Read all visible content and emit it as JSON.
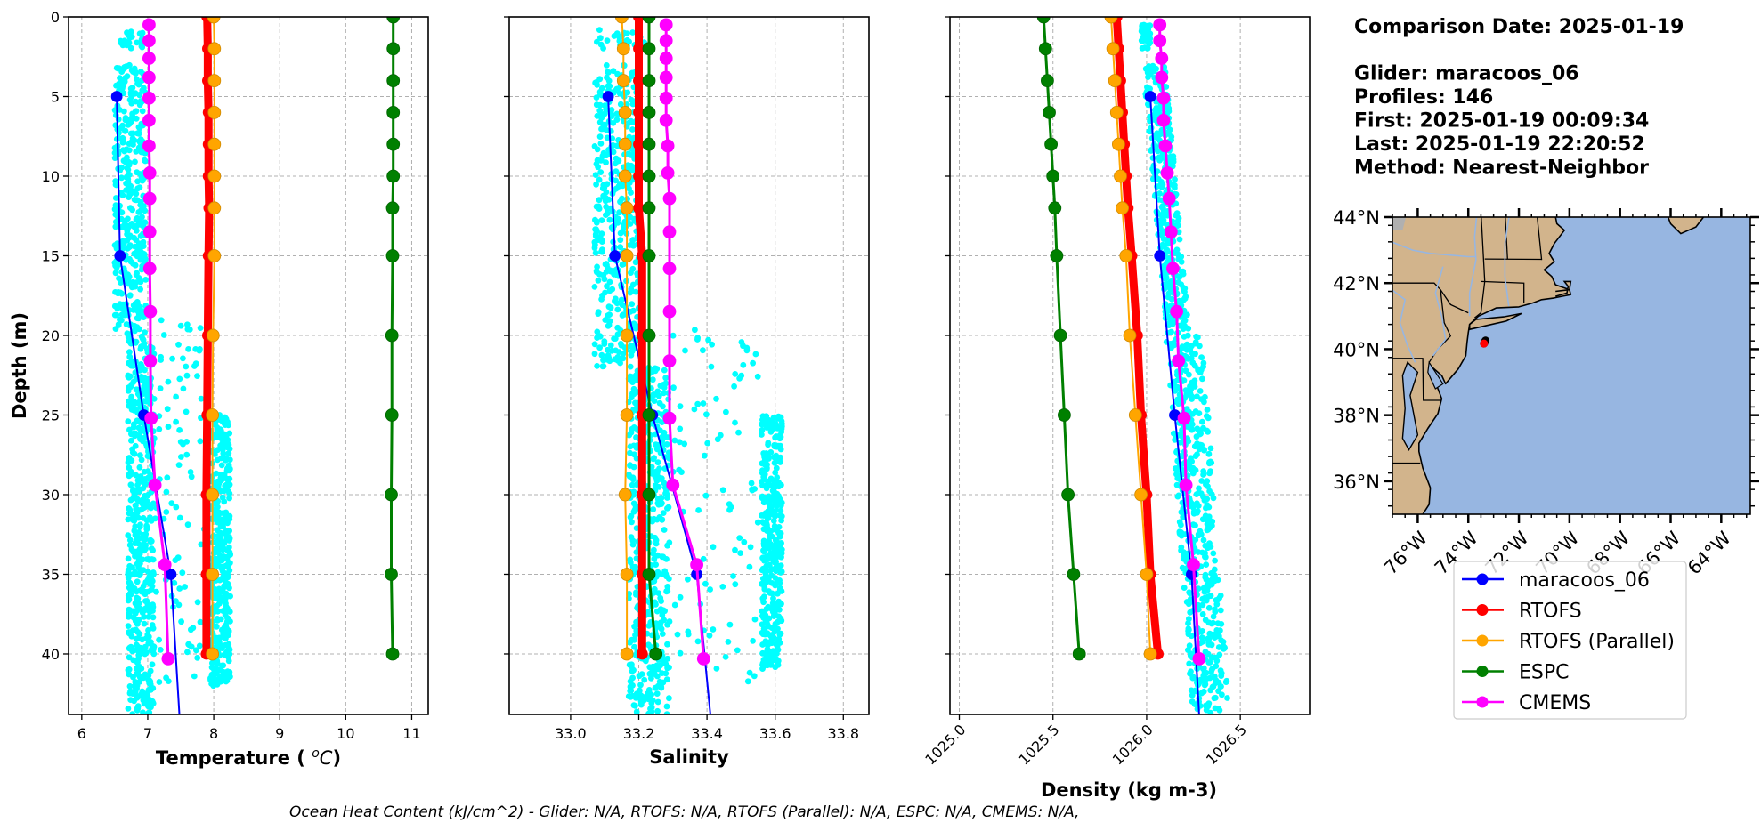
{
  "info": {
    "lines": [
      "Comparison Date: 2025-01-19",
      "",
      "Glider: maracoos_06",
      "Profiles: 146",
      "First: 2025-01-19 00:09:34",
      "Last: 2025-01-19 22:20:52",
      "Method: Nearest-Neighbor"
    ]
  },
  "footer": "Ocean Heat Content (kJ/cm^2) - Glider: N/A,  RTOFS: N/A,  RTOFS (Parallel): N/A,  ESPC: N/A,  CMEMS: N/A,",
  "colors": {
    "maracoos_06": "#0000ff",
    "RTOFS": "#ff0000",
    "RTOFS (Parallel)": "#ffa500",
    "ESPC": "#008000",
    "CMEMS": "#ff00ff",
    "glider_scatter": "#00ffff",
    "land": "#d2b48c",
    "ocean": "#97b6e1"
  },
  "legend": [
    {
      "label": "maracoos_06",
      "color": "#0000ff"
    },
    {
      "label": "RTOFS",
      "color": "#ff0000"
    },
    {
      "label": "RTOFS (Parallel)",
      "color": "#ffa500"
    },
    {
      "label": "ESPC",
      "color": "#008000"
    },
    {
      "label": "CMEMS",
      "color": "#ff00ff"
    }
  ],
  "chart_data": [
    {
      "type": "line",
      "id": "temperature",
      "xlabel": "Temperature (°C)",
      "ylabel": "Depth (m)",
      "xlim": [
        5.8,
        11.25
      ],
      "ylim": [
        43.8,
        0
      ],
      "xticks": [
        6,
        7,
        8,
        9,
        10,
        11
      ],
      "xtick_labels": [
        "6",
        "7",
        "8",
        "9",
        "10",
        "11"
      ],
      "yticks": [
        0,
        5,
        10,
        15,
        20,
        25,
        30,
        35,
        40
      ],
      "grid": true,
      "glider_scatter_bands": [
        {
          "depth": [
            0.8,
            2.0
          ],
          "x": [
            6.55,
            6.97
          ]
        },
        {
          "depth": [
            3.0,
            20.0
          ],
          "x": [
            6.5,
            6.97
          ]
        },
        {
          "depth": [
            20.0,
            43.8
          ],
          "x": [
            6.7,
            7.1
          ]
        },
        {
          "depth": [
            19.0,
            42.0
          ],
          "x": [
            7.1,
            7.9
          ],
          "sparse": true
        },
        {
          "depth": [
            25.0,
            42.0
          ],
          "x": [
            7.95,
            8.25
          ]
        }
      ],
      "series": [
        {
          "name": "maracoos_06",
          "depth": [
            5,
            15,
            25,
            35,
            43.8
          ],
          "values": [
            6.53,
            6.58,
            6.94,
            7.35,
            7.48
          ]
        },
        {
          "name": "RTOFS",
          "depth": [
            0,
            2,
            4,
            6,
            8,
            10,
            12,
            15,
            20,
            25,
            30,
            35,
            40
          ],
          "values": [
            7.9,
            7.91,
            7.91,
            7.92,
            7.92,
            7.92,
            7.93,
            7.92,
            7.91,
            7.9,
            7.89,
            7.89,
            7.89
          ]
        },
        {
          "name": "RTOFS (Parallel)",
          "depth": [
            0,
            2,
            4,
            6,
            8,
            10,
            12,
            15,
            20,
            25,
            30,
            35,
            40
          ],
          "values": [
            8.0,
            8.01,
            8.01,
            8.01,
            8.01,
            8.01,
            8.01,
            8.01,
            7.99,
            7.98,
            7.98,
            7.98,
            7.98
          ]
        },
        {
          "name": "ESPC",
          "depth": [
            0,
            2,
            4,
            6,
            8,
            10,
            12,
            15,
            20,
            25,
            30,
            35,
            40
          ],
          "values": [
            10.72,
            10.72,
            10.72,
            10.72,
            10.72,
            10.72,
            10.71,
            10.71,
            10.7,
            10.7,
            10.69,
            10.69,
            10.71
          ]
        },
        {
          "name": "CMEMS",
          "depth": [
            0.5,
            1.5,
            2.6,
            3.8,
            5.1,
            6.5,
            8.1,
            9.8,
            11.4,
            13.5,
            15.8,
            18.5,
            21.6,
            25.2,
            29.4,
            34.4,
            40.3
          ],
          "values": [
            7.02,
            7.02,
            7.02,
            7.02,
            7.02,
            7.02,
            7.02,
            7.03,
            7.03,
            7.03,
            7.03,
            7.04,
            7.04,
            7.05,
            7.11,
            7.26,
            7.31
          ]
        }
      ]
    },
    {
      "type": "line",
      "id": "salinity",
      "xlabel": "Salinity",
      "ylabel": "",
      "xlim": [
        32.82,
        33.875
      ],
      "ylim": [
        43.8,
        0
      ],
      "xticks": [
        33.0,
        33.2,
        33.4,
        33.6,
        33.8
      ],
      "xtick_labels": [
        "33.0",
        "33.2",
        "33.4",
        "33.6",
        "33.8"
      ],
      "yticks": [
        0,
        5,
        10,
        15,
        20,
        25,
        30,
        35,
        40
      ],
      "grid": true,
      "glider_scatter_bands": [
        {
          "depth": [
            0.8,
            2.0
          ],
          "x": [
            33.07,
            33.22
          ]
        },
        {
          "depth": [
            3.0,
            22.0
          ],
          "x": [
            33.07,
            33.2
          ]
        },
        {
          "depth": [
            22.0,
            43.8
          ],
          "x": [
            33.17,
            33.29
          ]
        },
        {
          "depth": [
            19.5,
            42.0
          ],
          "x": [
            33.3,
            33.55
          ],
          "sparse": true
        },
        {
          "depth": [
            25.0,
            41.0
          ],
          "x": [
            33.56,
            33.62
          ]
        }
      ],
      "series": [
        {
          "name": "maracoos_06",
          "depth": [
            5,
            15,
            25,
            35,
            43.8
          ],
          "values": [
            33.11,
            33.13,
            33.24,
            33.37,
            33.41
          ]
        },
        {
          "name": "RTOFS",
          "depth": [
            0,
            2,
            4,
            6,
            8,
            10,
            12,
            15,
            20,
            25,
            30,
            35,
            40
          ],
          "values": [
            33.2,
            33.2,
            33.2,
            33.2,
            33.2,
            33.2,
            33.2,
            33.21,
            33.21,
            33.21,
            33.21,
            33.21,
            33.21
          ]
        },
        {
          "name": "RTOFS (Parallel)",
          "depth": [
            0,
            2,
            4,
            6,
            8,
            10,
            12,
            15,
            20,
            25,
            30,
            35,
            40
          ],
          "values": [
            33.15,
            33.155,
            33.155,
            33.16,
            33.16,
            33.16,
            33.165,
            33.165,
            33.165,
            33.165,
            33.16,
            33.165,
            33.165
          ]
        },
        {
          "name": "ESPC",
          "depth": [
            0,
            2,
            4,
            6,
            8,
            10,
            12,
            15,
            20,
            25,
            30,
            35,
            40
          ],
          "values": [
            33.23,
            33.23,
            33.23,
            33.23,
            33.23,
            33.23,
            33.23,
            33.23,
            33.23,
            33.23,
            33.23,
            33.23,
            33.25
          ]
        },
        {
          "name": "CMEMS",
          "depth": [
            0.5,
            1.5,
            2.6,
            3.8,
            5.1,
            6.5,
            8.1,
            9.8,
            11.4,
            13.5,
            15.8,
            18.5,
            21.6,
            25.2,
            29.4,
            34.4,
            40.3
          ],
          "values": [
            33.28,
            33.28,
            33.28,
            33.28,
            33.28,
            33.28,
            33.285,
            33.285,
            33.29,
            33.29,
            33.29,
            33.29,
            33.29,
            33.29,
            33.3,
            33.37,
            33.39
          ]
        }
      ]
    },
    {
      "type": "line",
      "id": "density",
      "xlabel": "Density (kg m-3)",
      "ylabel": "",
      "xlim": [
        1024.95,
        1026.87
      ],
      "ylim": [
        43.8,
        0
      ],
      "xticks": [
        1025.0,
        1025.5,
        1026.0,
        1026.5
      ],
      "xtick_labels": [
        "1025.0",
        "1025.5",
        "1026.0",
        "1026.5"
      ],
      "yticks": [
        0,
        5,
        10,
        15,
        20,
        25,
        30,
        35,
        40
      ],
      "grid": true,
      "glider_scatter_bands": [
        {
          "depth": [
            0.5,
            2.0
          ],
          "x": [
            1025.97,
            1026.02
          ]
        },
        {
          "depth": [
            3.0,
            20.0
          ],
          "x": [
            1025.98,
            1026.1
          ],
          "slope": 0.0075
        },
        {
          "depth": [
            20.0,
            43.8
          ],
          "x": [
            1026.1,
            1026.3
          ],
          "slope": 0.006
        }
      ],
      "series": [
        {
          "name": "maracoos_06",
          "depth": [
            5,
            15,
            25,
            35,
            43.8
          ],
          "values": [
            1026.02,
            1026.07,
            1026.15,
            1026.24,
            1026.28
          ]
        },
        {
          "name": "RTOFS",
          "depth": [
            0,
            2,
            4,
            6,
            8,
            10,
            12,
            15,
            20,
            25,
            30,
            35,
            40
          ],
          "values": [
            1025.84,
            1025.85,
            1025.86,
            1025.87,
            1025.88,
            1025.89,
            1025.9,
            1025.92,
            1025.95,
            1025.97,
            1026.0,
            1026.02,
            1026.06
          ]
        },
        {
          "name": "RTOFS (Parallel)",
          "depth": [
            0,
            2,
            4,
            6,
            8,
            10,
            12,
            15,
            20,
            25,
            30,
            35,
            40
          ],
          "values": [
            1025.81,
            1025.82,
            1025.83,
            1025.84,
            1025.85,
            1025.86,
            1025.87,
            1025.89,
            1025.91,
            1025.94,
            1025.97,
            1026.0,
            1026.02
          ]
        },
        {
          "name": "ESPC",
          "depth": [
            0,
            2,
            4,
            6,
            8,
            10,
            12,
            15,
            20,
            25,
            30,
            35,
            40
          ],
          "values": [
            1025.45,
            1025.46,
            1025.47,
            1025.48,
            1025.49,
            1025.5,
            1025.51,
            1025.52,
            1025.54,
            1025.56,
            1025.58,
            1025.61,
            1025.64
          ]
        },
        {
          "name": "CMEMS",
          "depth": [
            0.5,
            1.5,
            2.6,
            3.8,
            5.1,
            6.5,
            8.1,
            9.8,
            11.4,
            13.5,
            15.8,
            18.5,
            21.6,
            25.2,
            29.4,
            34.4,
            40.3
          ],
          "values": [
            1026.07,
            1026.07,
            1026.08,
            1026.08,
            1026.09,
            1026.09,
            1026.1,
            1026.11,
            1026.12,
            1026.13,
            1026.14,
            1026.16,
            1026.17,
            1026.2,
            1026.21,
            1026.25,
            1026.28
          ]
        }
      ]
    },
    {
      "type": "map",
      "id": "location-map",
      "lon_range": [
        -77.0,
        -62.85
      ],
      "lat_range": [
        35.0,
        44.0
      ],
      "lat_ticks": [
        44,
        42,
        40,
        38,
        36
      ],
      "lat_tick_labels": [
        "44°N",
        "42°N",
        "40°N",
        "38°N",
        "36°N"
      ],
      "lon_ticks": [
        -76,
        -74,
        -72,
        -70,
        -68,
        -66,
        -64
      ],
      "lon_tick_labels": [
        "76°W",
        "74°W",
        "72°W",
        "70°W",
        "68°W",
        "66°W",
        "64°W"
      ],
      "glider_track": {
        "lon": [
          -73.38,
          -73.32
        ],
        "lat": [
          40.17,
          40.26
        ],
        "marker_color": "#ff0000"
      }
    }
  ]
}
